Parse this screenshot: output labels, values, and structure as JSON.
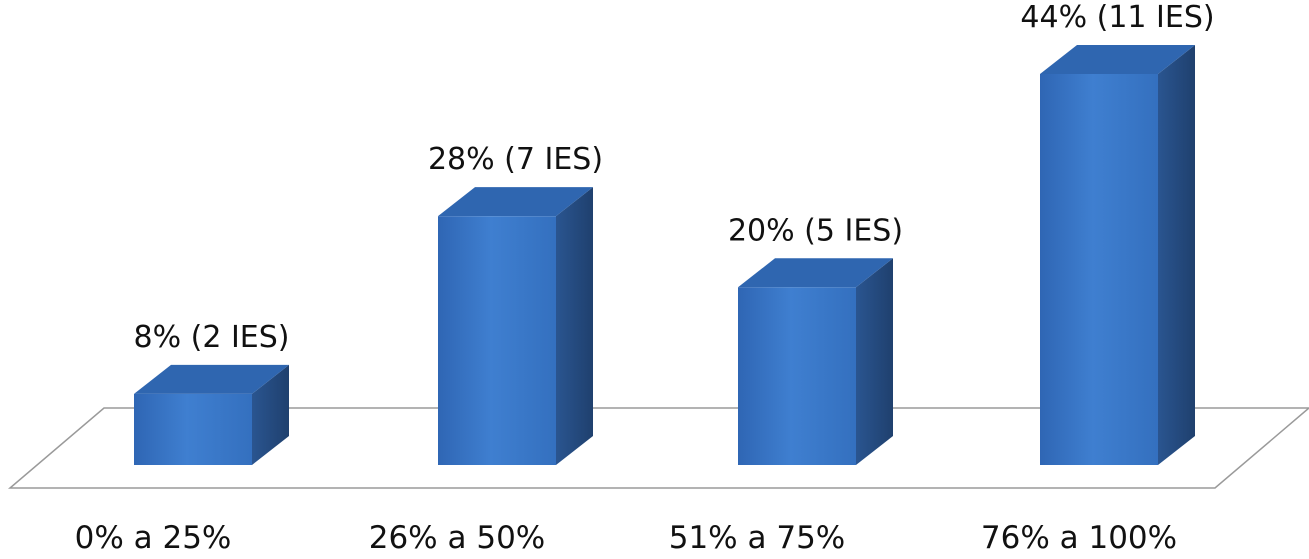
{
  "chart_data": {
    "type": "bar",
    "style": "3d-column",
    "title": "",
    "xlabel": "",
    "ylabel": "",
    "categories": [
      "0% a 25%",
      "26% a 50%",
      "51% a 75%",
      "76% a 100%"
    ],
    "values": [
      8,
      28,
      20,
      44
    ],
    "data_labels": [
      "8% (2 IES)",
      "28% (7 IES)",
      "20% (5 IES)",
      "44% (11 IES)"
    ],
    "ylim": [
      0,
      44
    ],
    "grid": false,
    "legend": "none",
    "colors": {
      "bar_front": "#3a78c8",
      "bar_front_light": "#4a8ad8",
      "bar_top": "#2f66b0",
      "bar_side": "#244a80",
      "floor_stroke": "#999999"
    }
  }
}
